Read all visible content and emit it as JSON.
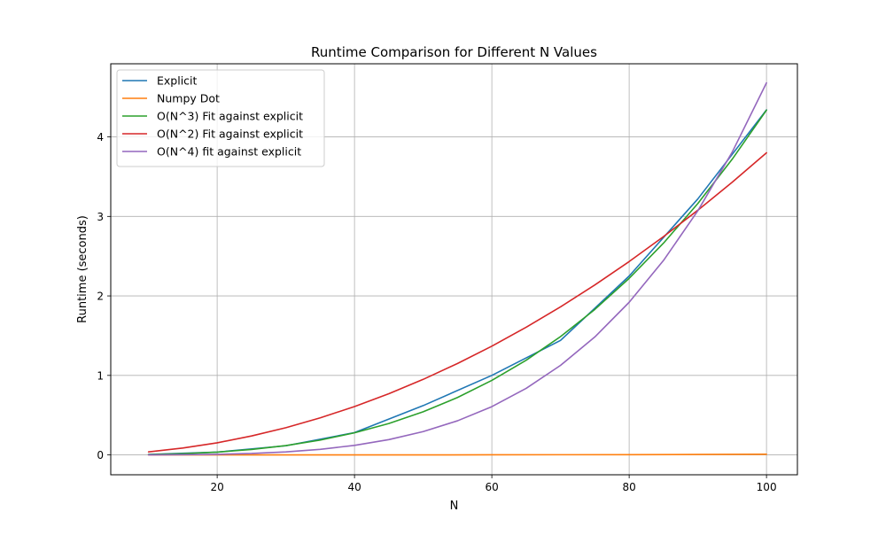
{
  "chart_data": {
    "type": "line",
    "title": "Runtime Comparison for Different N Values",
    "xlabel": "N",
    "ylabel": "Runtime (seconds)",
    "xlim": [
      4.5,
      104.5
    ],
    "ylim": [
      -0.25,
      4.92
    ],
    "xticks": [
      20,
      40,
      60,
      80,
      100
    ],
    "xtick_labels": [
      "20",
      "40",
      "60",
      "80",
      "100"
    ],
    "yticks": [
      0,
      1,
      2,
      3,
      4
    ],
    "ytick_labels": [
      "0",
      "1",
      "2",
      "3",
      "4"
    ],
    "grid": true,
    "legend_position": "top-left",
    "series": [
      {
        "name": "Explicit",
        "color": "#1f77b4",
        "x": [
          10,
          20,
          30,
          40,
          50,
          60,
          70,
          80,
          90,
          100
        ],
        "y": [
          0.005,
          0.035,
          0.115,
          0.28,
          0.62,
          1.0,
          1.44,
          2.25,
          3.22,
          4.34
        ]
      },
      {
        "name": "Numpy Dot",
        "color": "#ff7f0e",
        "x": [
          10,
          20,
          30,
          40,
          50,
          60,
          70,
          80,
          90,
          100
        ],
        "y": [
          0.0,
          0.0,
          0.0,
          0.0,
          0.0,
          0.001,
          0.002,
          0.003,
          0.005,
          0.008
        ]
      },
      {
        "name": "O(N^3) Fit against explicit",
        "color": "#2ca02c",
        "x": [
          10,
          15,
          20,
          25,
          30,
          35,
          40,
          45,
          50,
          55,
          60,
          65,
          70,
          75,
          80,
          85,
          90,
          95,
          100
        ],
        "y": [
          0.004,
          0.015,
          0.035,
          0.068,
          0.117,
          0.186,
          0.278,
          0.395,
          0.542,
          0.722,
          0.937,
          1.191,
          1.488,
          1.83,
          2.221,
          2.664,
          3.162,
          3.719,
          4.337
        ]
      },
      {
        "name": "O(N^2) Fit against explicit",
        "color": "#d62728",
        "x": [
          10,
          15,
          20,
          25,
          30,
          35,
          40,
          45,
          50,
          55,
          60,
          65,
          70,
          75,
          80,
          85,
          90,
          95,
          100
        ],
        "y": [
          0.038,
          0.086,
          0.152,
          0.238,
          0.342,
          0.466,
          0.608,
          0.77,
          0.95,
          1.15,
          1.368,
          1.606,
          1.862,
          2.138,
          2.432,
          2.746,
          3.078,
          3.43,
          3.8
        ]
      },
      {
        "name": "O(N^4) fit against explicit",
        "color": "#9467bd",
        "x": [
          10,
          15,
          20,
          25,
          30,
          35,
          40,
          45,
          50,
          55,
          60,
          65,
          70,
          75,
          80,
          85,
          90,
          95,
          100
        ],
        "y": [
          0.0005,
          0.0024,
          0.0075,
          0.018,
          0.038,
          0.07,
          0.12,
          0.192,
          0.293,
          0.429,
          0.607,
          0.837,
          1.126,
          1.484,
          1.92,
          2.446,
          3.071,
          3.808,
          4.68
        ]
      }
    ]
  }
}
